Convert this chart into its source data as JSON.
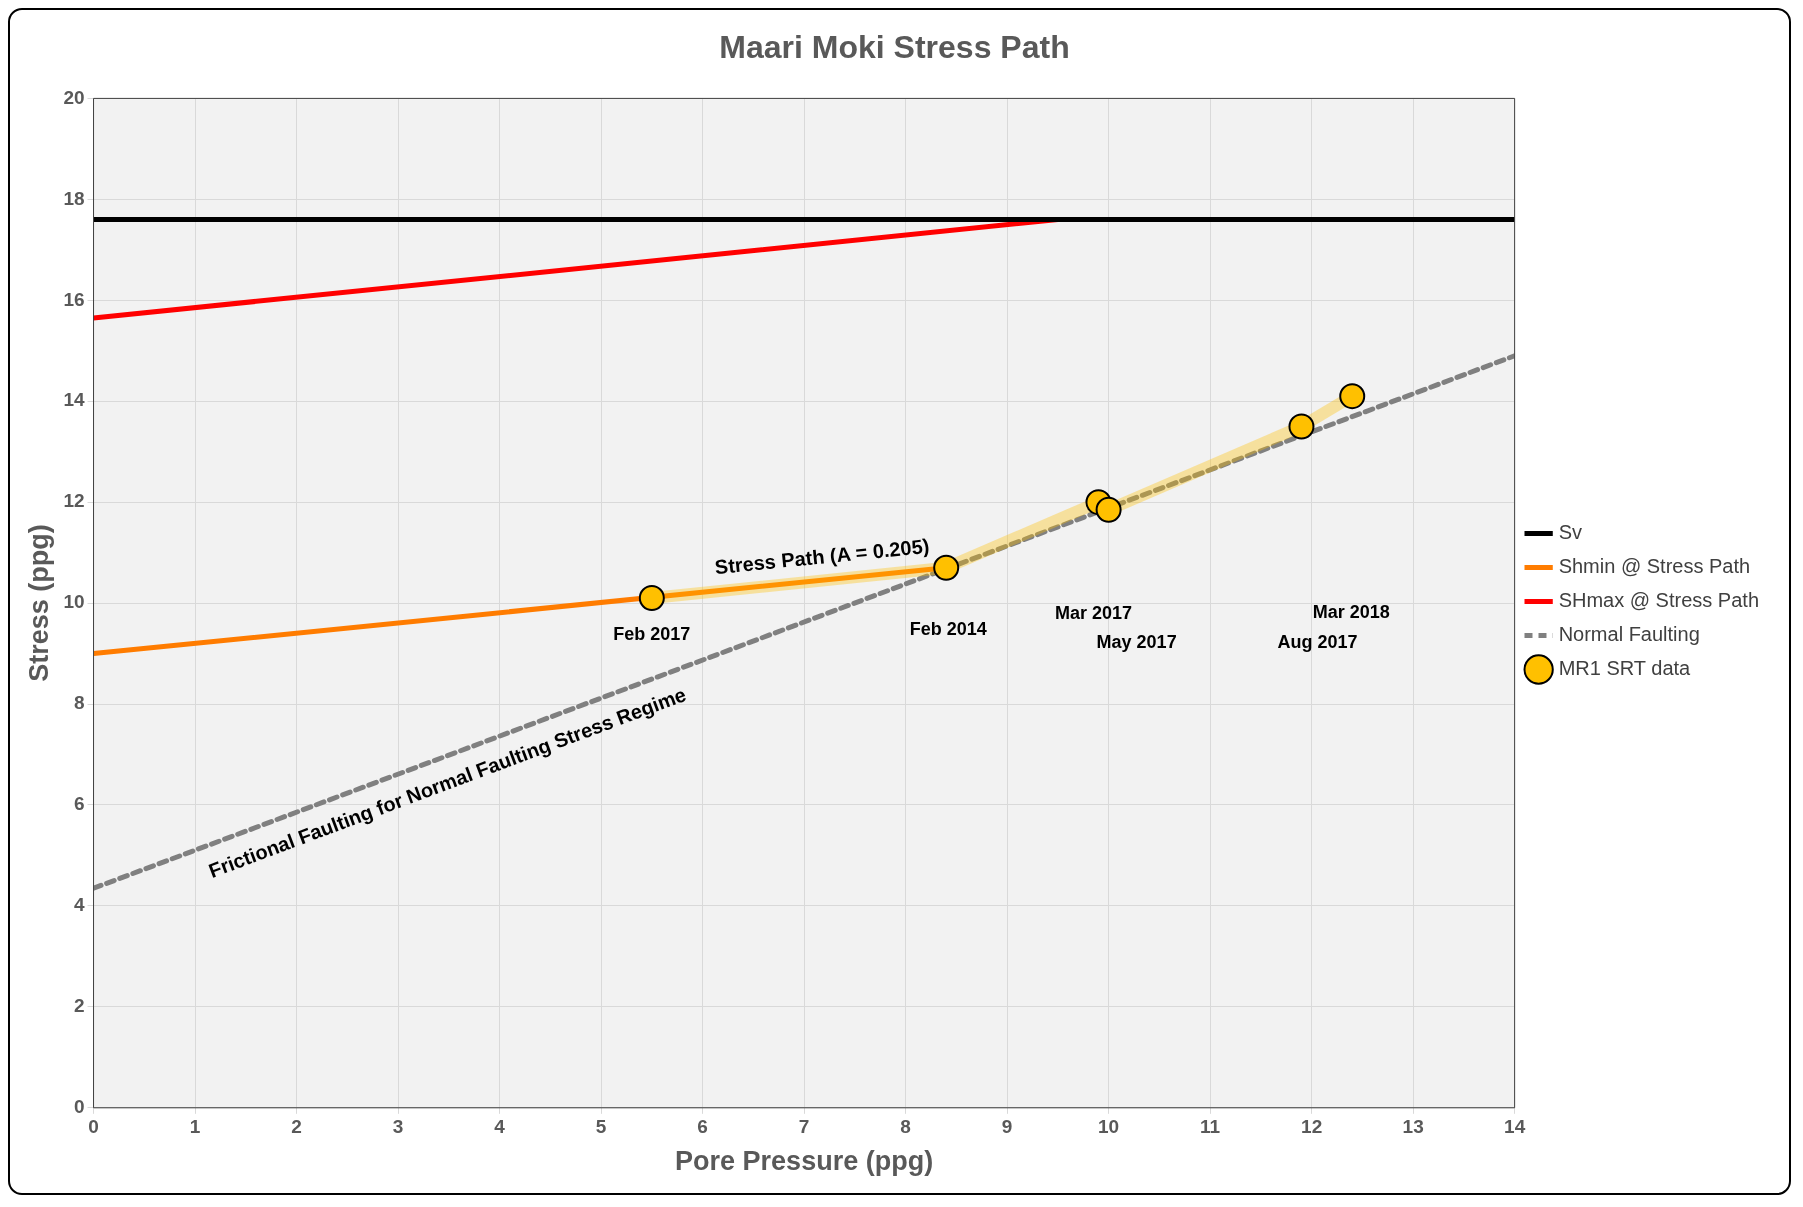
{
  "chart_data": {
    "type": "line",
    "title": "Maari Moki Stress Path",
    "xlabel": "Pore Pressure (ppg)",
    "ylabel": "Stress (ppg)",
    "xlim": [
      0,
      14
    ],
    "xticks": [
      0,
      1,
      2,
      3,
      4,
      5,
      6,
      7,
      8,
      9,
      10,
      11,
      12,
      13,
      14
    ],
    "ylim": [
      0,
      20
    ],
    "yticks": [
      0,
      2,
      4,
      6,
      8,
      10,
      12,
      14,
      16,
      18,
      20
    ],
    "grid": true,
    "legend": "right",
    "series": [
      {
        "name": "Sv",
        "color": "#000000",
        "x": [
          0,
          14
        ],
        "values": [
          17.6,
          17.6
        ],
        "marker": "none",
        "line_style": "solid"
      },
      {
        "name": "Shmin @ Stress Path",
        "color": "#ff7c00",
        "x": [
          0,
          8.4
        ],
        "values": [
          9.0,
          10.7
        ],
        "marker": "none",
        "line_style": "solid"
      },
      {
        "name": "SHmax @ Stress Path",
        "color": "#ff0000",
        "x": [
          0,
          9.5
        ],
        "values": [
          15.65,
          17.6
        ],
        "marker": "none",
        "line_style": "solid"
      },
      {
        "name": "Normal Faulting",
        "color": "#808080",
        "x": [
          0,
          14
        ],
        "values": [
          4.35,
          14.9
        ],
        "marker": "none",
        "line_style": "dashed"
      },
      {
        "name": "MR1 SRT data",
        "color": "#ffc000",
        "x": [
          5.5,
          8.4,
          9.9,
          10.0,
          11.9,
          12.4
        ],
        "values": [
          10.1,
          10.7,
          12.0,
          11.85,
          13.5,
          14.1
        ],
        "marker": "circle",
        "line_style": "solid"
      }
    ],
    "annotations": [
      {
        "text": "Stress Path (A = 0.205)",
        "x": 7.2,
        "y": 10.46
      },
      {
        "text": "Frictional Faulting for Normal Faulting Stress Regime",
        "x": 3.4,
        "y": 6.9
      },
      {
        "text": "Feb 2017",
        "x": 5.5,
        "y": 10.1
      },
      {
        "text": "Feb 2014",
        "x": 8.4,
        "y": 10.7
      },
      "Mar 2017",
      "May 2017",
      "Mar 2018",
      "Aug 2017"
    ]
  }
}
